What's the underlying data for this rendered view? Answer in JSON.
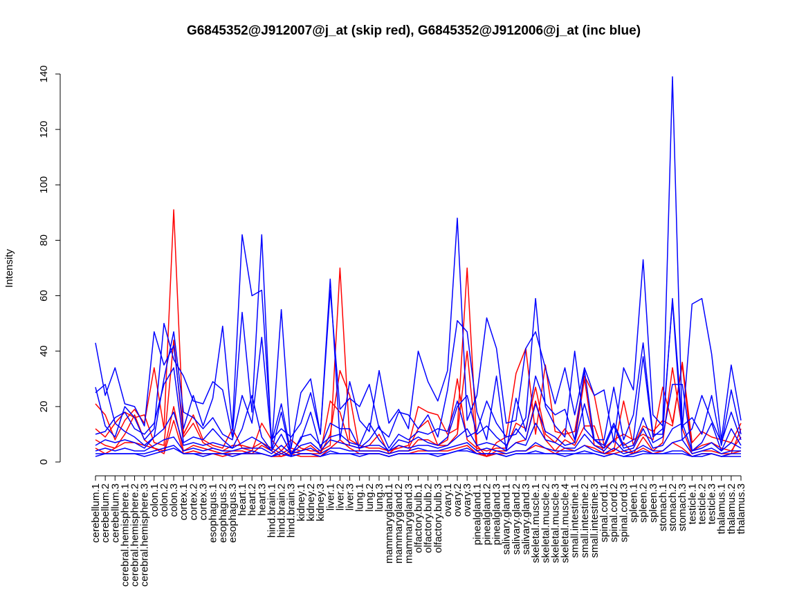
{
  "chart_data": {
    "type": "line",
    "title": "G6845352@J912007@j_at (skip red), G6845352@J912006@j_at (inc blue)",
    "xlabel": "",
    "ylabel": "Intensity",
    "ylim": [
      0,
      140
    ],
    "yticks": [
      0,
      20,
      40,
      60,
      80,
      100,
      120,
      140
    ],
    "grid": false,
    "legend": "none",
    "colors": {
      "skip": "#ff0000",
      "inc": "#0000ff",
      "axis": "#000000"
    },
    "categories": [
      "cerebellum.1",
      "cerebellum.2",
      "cerebellum.3",
      "cerebral.hemisphere.1",
      "cerebral.hemisphere.2",
      "cerebral.hemisphere.3",
      "colon.1",
      "colon.2",
      "colon.3",
      "cortex.1",
      "cortex.2",
      "cortex.3",
      "esophagus.1",
      "esophagus.2",
      "esophagus.3",
      "heart.1",
      "heart.2",
      "heart.3",
      "hind.brain.1",
      "hind.brain.2",
      "hind.brain.3",
      "kidney.1",
      "kidney.2",
      "kidney.3",
      "liver.1",
      "liver.2",
      "liver.3",
      "lung.1",
      "lung.2",
      "lung.3",
      "mammarygland.1",
      "mammarygland.2",
      "mammarygland.3",
      "olfactory.bulb.1",
      "olfactory.bulb.2",
      "olfactory.bulb.3",
      "ovary.1",
      "ovary.2",
      "ovary.3",
      "pinealgland.1",
      "pinealgland.2",
      "pinealgland.3",
      "salivary.gland.1",
      "salivary.gland.2",
      "salivary.gland.3",
      "skeletal.muscle.1",
      "skeletal.muscle.2",
      "skeletal.muscle.3",
      "skeletal.muscle.4",
      "small.intestine.1",
      "small.intestine.2",
      "small.intestine.3",
      "spinal.cord.1",
      "spinal.cord.2",
      "spinal.cord.3",
      "spleen.1",
      "spleen.2",
      "spleen.3",
      "stomach.1",
      "stomach.2",
      "stomach.3",
      "testicle.1",
      "testicle.2",
      "testicle.3",
      "thalamus.1",
      "thalamus.2",
      "thalamus.3"
    ],
    "series": [
      {
        "name": "skip-1",
        "group": "skip",
        "values": [
          21,
          17,
          8,
          15,
          19,
          14,
          34,
          12,
          91,
          10,
          17,
          8,
          6,
          5,
          12,
          5,
          4,
          14,
          8,
          4,
          8,
          5,
          4,
          4,
          6,
          70,
          8,
          6,
          5,
          5,
          4,
          5,
          6,
          20,
          18,
          17,
          10,
          12,
          70,
          6,
          2,
          7,
          9,
          32,
          41,
          10,
          35,
          11,
          10,
          11,
          31,
          24,
          6,
          4,
          22,
          6,
          13,
          11,
          15,
          13,
          36,
          7,
          11,
          9,
          8,
          7,
          14
        ]
      },
      {
        "name": "skip-2",
        "group": "skip",
        "values": [
          12,
          9,
          14,
          18,
          16,
          17,
          7,
          6,
          44,
          9,
          14,
          7,
          5,
          4,
          6,
          6,
          5,
          7,
          5,
          3,
          5,
          4,
          6,
          3,
          22,
          18,
          6,
          5,
          6,
          10,
          3,
          6,
          5,
          12,
          15,
          6,
          8,
          30,
          8,
          5,
          4,
          5,
          5,
          14,
          12,
          27,
          10,
          7,
          12,
          7,
          30,
          6,
          5,
          8,
          10,
          8,
          10,
          8,
          27,
          14,
          35,
          4,
          6,
          7,
          5,
          4,
          9
        ]
      },
      {
        "name": "skip-3",
        "group": "skip",
        "values": [
          8,
          6,
          5,
          10,
          17,
          8,
          5,
          4,
          20,
          4,
          6,
          5,
          4,
          3,
          4,
          4,
          3,
          6,
          4,
          2,
          4,
          3,
          3,
          3,
          10,
          33,
          24,
          4,
          4,
          4,
          3,
          4,
          4,
          8,
          8,
          6,
          6,
          10,
          40,
          4,
          2,
          4,
          4,
          7,
          8,
          22,
          8,
          4,
          8,
          6,
          13,
          13,
          3,
          4,
          7,
          3,
          9,
          4,
          7,
          34,
          12,
          3,
          4,
          4,
          3,
          3,
          12
        ]
      },
      {
        "name": "skip-4",
        "group": "skip",
        "values": [
          5,
          3,
          5,
          7,
          7,
          6,
          5,
          3,
          15,
          3,
          4,
          3,
          3,
          2,
          3,
          3,
          3,
          3,
          2,
          2,
          3,
          2,
          2,
          2,
          5,
          8,
          5,
          3,
          3,
          3,
          2,
          3,
          3,
          4,
          4,
          4,
          4,
          5,
          6,
          3,
          2,
          3,
          3,
          4,
          4,
          6,
          5,
          3,
          5,
          4,
          6,
          5,
          3,
          3,
          4,
          3,
          5,
          3,
          4,
          7,
          5,
          2,
          3,
          3,
          2,
          3,
          4
        ]
      },
      {
        "name": "inc-1",
        "group": "inc",
        "values": [
          43,
          24,
          34,
          21,
          20,
          13,
          47,
          35,
          42,
          12,
          24,
          13,
          23,
          49,
          12,
          82,
          60,
          62,
          8,
          12,
          9,
          14,
          25,
          10,
          66,
          8,
          29,
          15,
          11,
          33,
          14,
          19,
          12,
          40,
          29,
          22,
          33,
          88,
          15,
          24,
          52,
          41,
          14,
          15,
          41,
          47,
          34,
          21,
          34,
          17,
          34,
          24,
          26,
          7,
          34,
          26,
          73,
          17,
          13,
          139,
          12,
          57,
          59,
          39,
          8,
          35,
          15
        ]
      },
      {
        "name": "inc-2",
        "group": "inc",
        "values": [
          27,
          13,
          9,
          20,
          16,
          8,
          12,
          50,
          37,
          31,
          22,
          21,
          29,
          26,
          9,
          54,
          18,
          82,
          5,
          55,
          5,
          25,
          30,
          10,
          62,
          19,
          23,
          20,
          28,
          12,
          9,
          18,
          17,
          12,
          17,
          9,
          26,
          51,
          47,
          18,
          8,
          31,
          4,
          23,
          11,
          31,
          21,
          17,
          19,
          8,
          33,
          8,
          8,
          27,
          8,
          17,
          43,
          10,
          10,
          59,
          13,
          16,
          10,
          24,
          6,
          26,
          10
        ]
      },
      {
        "name": "inc-3",
        "group": "inc",
        "values": [
          25,
          28,
          14,
          11,
          9,
          6,
          9,
          30,
          47,
          18,
          16,
          12,
          16,
          10,
          8,
          24,
          14,
          45,
          7,
          21,
          3,
          8,
          18,
          5,
          14,
          12,
          12,
          5,
          8,
          13,
          5,
          10,
          8,
          11,
          10,
          12,
          11,
          22,
          9,
          11,
          22,
          14,
          9,
          10,
          16,
          59,
          20,
          13,
          9,
          40,
          12,
          8,
          6,
          14,
          6,
          8,
          38,
          9,
          12,
          58,
          8,
          12,
          24,
          15,
          7,
          18,
          8
        ]
      },
      {
        "name": "inc-4",
        "group": "inc",
        "values": [
          10,
          11,
          16,
          18,
          12,
          10,
          14,
          28,
          34,
          7,
          9,
          8,
          12,
          8,
          5,
          12,
          24,
          9,
          4,
          18,
          2,
          9,
          10,
          6,
          9,
          10,
          7,
          6,
          14,
          8,
          4,
          8,
          7,
          9,
          7,
          6,
          9,
          20,
          24,
          10,
          13,
          9,
          6,
          12,
          8,
          21,
          11,
          9,
          6,
          7,
          21,
          8,
          5,
          13,
          5,
          6,
          16,
          7,
          9,
          28,
          28,
          4,
          7,
          14,
          4,
          12,
          6
        ]
      },
      {
        "name": "inc-5",
        "group": "inc",
        "values": [
          6,
          8,
          7,
          8,
          7,
          5,
          9,
          12,
          18,
          6,
          7,
          6,
          7,
          6,
          5,
          7,
          9,
          7,
          4,
          10,
          3,
          6,
          7,
          4,
          8,
          7,
          6,
          5,
          6,
          6,
          4,
          6,
          5,
          6,
          6,
          5,
          6,
          9,
          12,
          6,
          7,
          6,
          4,
          7,
          6,
          14,
          8,
          7,
          5,
          5,
          10,
          6,
          4,
          8,
          4,
          5,
          12,
          5,
          6,
          12,
          14,
          4,
          5,
          7,
          4,
          7,
          5
        ]
      },
      {
        "name": "inc-6",
        "group": "inc",
        "values": [
          4,
          5,
          4,
          5,
          4,
          4,
          6,
          8,
          9,
          4,
          5,
          4,
          5,
          4,
          4,
          5,
          5,
          5,
          3,
          6,
          3,
          4,
          5,
          3,
          5,
          5,
          4,
          4,
          4,
          4,
          3,
          4,
          4,
          5,
          4,
          4,
          5,
          6,
          7,
          4,
          5,
          4,
          3,
          4,
          4,
          7,
          5,
          4,
          4,
          4,
          6,
          4,
          3,
          5,
          3,
          4,
          6,
          4,
          4,
          7,
          8,
          3,
          4,
          5,
          3,
          4,
          4
        ]
      },
      {
        "name": "inc-7",
        "group": "inc",
        "values": [
          3,
          3,
          3,
          3,
          3,
          3,
          4,
          5,
          6,
          3,
          3,
          3,
          3,
          3,
          3,
          3,
          4,
          3,
          2,
          4,
          2,
          3,
          3,
          2,
          4,
          3,
          3,
          3,
          3,
          3,
          2,
          3,
          3,
          3,
          3,
          3,
          3,
          4,
          5,
          3,
          3,
          3,
          2,
          3,
          3,
          4,
          3,
          3,
          3,
          3,
          4,
          3,
          2,
          3,
          2,
          3,
          4,
          3,
          3,
          4,
          4,
          2,
          3,
          3,
          2,
          3,
          3
        ]
      },
      {
        "name": "inc-8",
        "group": "inc",
        "values": [
          2,
          3,
          3,
          3,
          3,
          2,
          3,
          4,
          5,
          3,
          3,
          2,
          3,
          3,
          2,
          3,
          3,
          3,
          2,
          3,
          2,
          3,
          3,
          2,
          3,
          3,
          3,
          2,
          3,
          3,
          2,
          3,
          3,
          3,
          3,
          2,
          3,
          4,
          4,
          3,
          3,
          3,
          2,
          3,
          3,
          3,
          3,
          3,
          2,
          3,
          3,
          3,
          2,
          3,
          2,
          2,
          3,
          3,
          3,
          3,
          3,
          2,
          2,
          3,
          2,
          2,
          2
        ]
      }
    ]
  }
}
